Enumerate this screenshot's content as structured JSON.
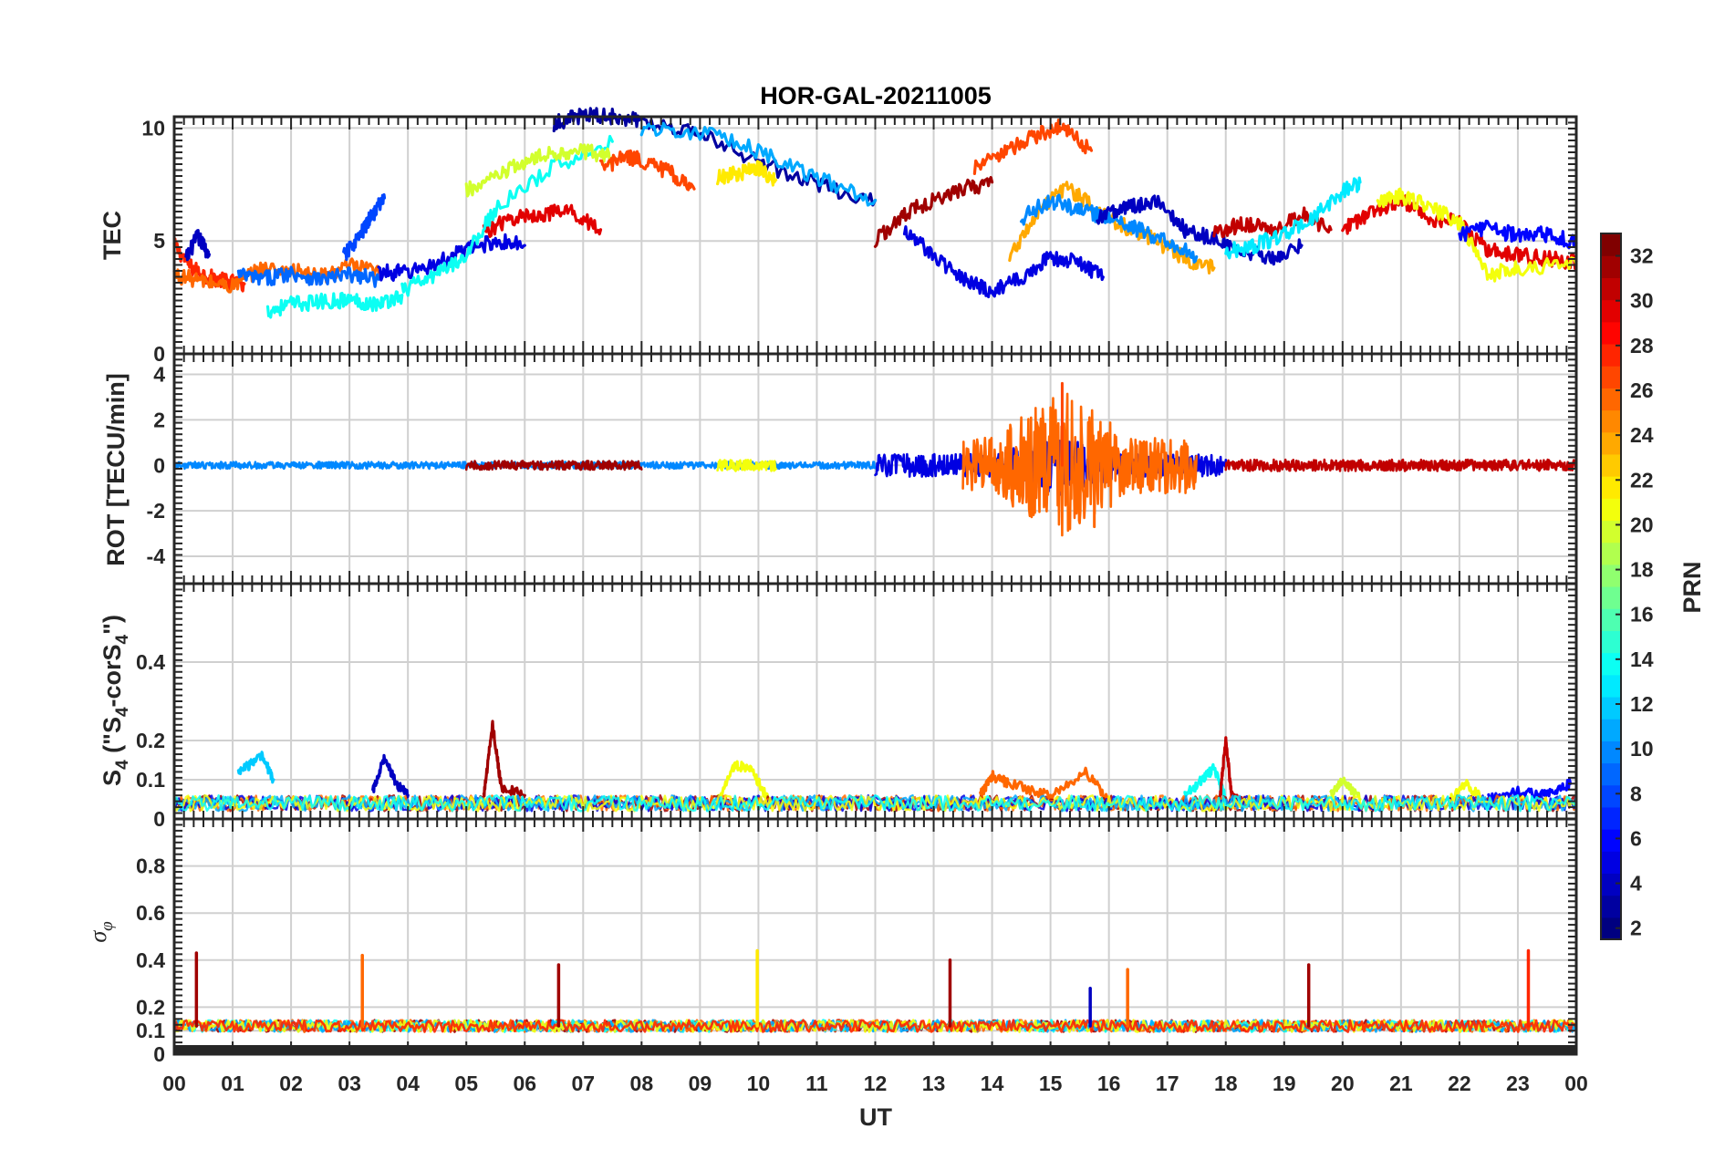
{
  "figure_title": "HOR-GAL-20211005",
  "x_axis_label": "UT",
  "colorbar_label": "PRN",
  "chart_data": [
    {
      "type": "line",
      "panel": "TEC",
      "title": "HOR-GAL-20211005",
      "ylabel": "TEC",
      "ylim": [
        0,
        10.5
      ],
      "yticks": [
        0,
        5,
        10
      ],
      "ytick_labels": [
        "0",
        "5",
        "10"
      ],
      "xlim": [
        0,
        24
      ],
      "grid": true,
      "series": [
        {
          "prn": 27,
          "x": [
            0.0,
            0.3,
            0.6,
            0.9,
            1.2
          ],
          "y": [
            4.8,
            3.8,
            3.4,
            3.2,
            3.1
          ]
        },
        {
          "prn": 3,
          "x": [
            0.2,
            0.4,
            0.6
          ],
          "y": [
            4.2,
            5.2,
            4.4
          ]
        },
        {
          "prn": 25,
          "x": [
            0.0,
            0.5,
            1.0,
            1.5,
            2.0,
            2.5,
            3.0,
            3.5
          ],
          "y": [
            3.5,
            3.2,
            3.0,
            3.8,
            3.7,
            3.4,
            3.9,
            3.6
          ]
        },
        {
          "prn": 8,
          "x": [
            1.1,
            1.5,
            2.0,
            2.5,
            3.0,
            3.5
          ],
          "y": [
            3.5,
            3.3,
            3.6,
            3.3,
            3.5,
            3.3
          ]
        },
        {
          "prn": 13,
          "x": [
            1.6,
            2.0,
            2.5,
            3.0,
            3.5,
            3.9
          ],
          "y": [
            1.9,
            2.2,
            2.3,
            2.4,
            2.2,
            2.6
          ]
        },
        {
          "prn": 7,
          "x": [
            2.9,
            3.2,
            3.4,
            3.6
          ],
          "y": [
            4.3,
            5.3,
            6.2,
            6.9
          ]
        },
        {
          "prn": 4,
          "x": [
            3.5,
            4.0,
            4.5,
            5.0,
            5.5,
            6.0
          ],
          "y": [
            3.6,
            3.6,
            4.0,
            4.6,
            5.0,
            4.8
          ]
        },
        {
          "prn": 29,
          "x": [
            5.3,
            5.8,
            6.3,
            6.8,
            7.3
          ],
          "y": [
            5.4,
            6.0,
            6.2,
            6.3,
            5.5
          ]
        },
        {
          "prn": 13,
          "x": [
            3.9,
            4.5,
            5.0,
            5.5,
            6.5,
            7.5
          ],
          "y": [
            2.8,
            3.5,
            4.4,
            6.4,
            8.3,
            9.4
          ]
        },
        {
          "prn": 19,
          "x": [
            5.0,
            5.5,
            6.0,
            6.5,
            7.0,
            7.5
          ],
          "y": [
            7.2,
            7.8,
            8.5,
            8.9,
            9.0,
            8.7
          ]
        },
        {
          "prn": 26,
          "x": [
            7.3,
            7.7,
            8.0,
            8.5,
            8.9
          ],
          "y": [
            8.2,
            8.7,
            8.6,
            8.0,
            7.3
          ]
        },
        {
          "prn": 2,
          "x": [
            6.5,
            7.0,
            7.5,
            8.0,
            9.0,
            10.0,
            11.0,
            12.0
          ],
          "y": [
            10.2,
            10.6,
            10.5,
            10.4,
            9.7,
            8.5,
            7.5,
            6.8
          ]
        },
        {
          "prn": 10,
          "x": [
            8.0,
            9.0,
            10.0,
            11.0,
            12.0
          ],
          "y": [
            10.0,
            9.8,
            9.0,
            7.8,
            6.8
          ]
        },
        {
          "prn": 21,
          "x": [
            9.3,
            9.7,
            10.0,
            10.3
          ],
          "y": [
            7.8,
            8.0,
            8.2,
            7.7
          ]
        },
        {
          "prn": 31,
          "x": [
            12.0,
            12.5,
            13.0,
            13.5,
            14.0
          ],
          "y": [
            5.0,
            6.2,
            6.8,
            7.3,
            7.6
          ]
        },
        {
          "prn": 26,
          "x": [
            13.7,
            14.2,
            14.7,
            15.2,
            15.7
          ],
          "y": [
            8.2,
            8.9,
            9.6,
            10.1,
            9.0
          ]
        },
        {
          "prn": 4,
          "x": [
            12.5,
            13.0,
            13.5,
            14.0,
            14.5,
            15.0,
            15.5,
            15.9
          ],
          "y": [
            5.5,
            4.3,
            3.3,
            2.8,
            3.3,
            4.3,
            4.0,
            3.4
          ]
        },
        {
          "prn": 23,
          "x": [
            14.3,
            14.8,
            15.3,
            15.8,
            16.3,
            16.8,
            17.3,
            17.8
          ],
          "y": [
            4.3,
            6.3,
            7.4,
            6.3,
            5.6,
            5.0,
            4.2,
            3.8
          ]
        },
        {
          "prn": 9,
          "x": [
            14.5,
            15.0,
            15.5,
            16.0,
            16.5,
            17.0,
            17.5
          ],
          "y": [
            6.0,
            6.8,
            6.4,
            6.0,
            5.5,
            5.0,
            4.3
          ]
        },
        {
          "prn": 3,
          "x": [
            15.8,
            16.3,
            16.8,
            17.3,
            17.8,
            18.3,
            18.8,
            19.3
          ],
          "y": [
            6.0,
            6.5,
            6.8,
            5.5,
            5.1,
            4.5,
            4.3,
            4.8
          ]
        },
        {
          "prn": 30,
          "x": [
            17.8,
            18.3,
            18.8,
            19.3,
            19.8
          ],
          "y": [
            5.3,
            5.8,
            5.5,
            6.2,
            5.5
          ]
        },
        {
          "prn": 12,
          "x": [
            18.0,
            18.5,
            19.0,
            19.5,
            20.0,
            20.3
          ],
          "y": [
            4.5,
            4.8,
            5.3,
            6.0,
            7.2,
            7.6
          ]
        },
        {
          "prn": 29,
          "x": [
            20.0,
            20.5,
            21.0,
            21.5,
            22.0,
            22.5,
            23.0,
            23.5,
            24.0
          ],
          "y": [
            5.5,
            6.2,
            6.8,
            6.0,
            5.8,
            4.6,
            4.4,
            4.2,
            4.1
          ]
        },
        {
          "prn": 20,
          "x": [
            20.6,
            21.0,
            21.5,
            22.0,
            22.5,
            23.0,
            24.0
          ],
          "y": [
            6.8,
            7.0,
            6.5,
            5.8,
            3.5,
            3.8,
            4.0
          ]
        },
        {
          "prn": 5,
          "x": [
            22.0,
            22.5,
            23.0,
            23.5,
            24.0
          ],
          "y": [
            5.3,
            5.6,
            5.2,
            5.3,
            4.9
          ]
        }
      ]
    },
    {
      "type": "line",
      "panel": "ROT",
      "ylabel": "ROT [TECU/min]",
      "ylim": [
        -5.2,
        4.9
      ],
      "yticks": [
        -4,
        -2,
        0,
        2,
        4
      ],
      "ytick_labels": [
        "-4",
        "-2",
        "0",
        "2",
        "4"
      ],
      "xlim": [
        0,
        24
      ],
      "grid": true,
      "description_values": {
        "baseline": 0.0,
        "peak_max": 3.6,
        "peak_min": -2.7,
        "peak_time_ut": 15.2
      },
      "series": [
        {
          "prn": 9,
          "x": [
            0.0,
            12.0
          ],
          "amplitude": 0.3
        },
        {
          "prn": 31,
          "x": [
            5.0,
            8.0
          ],
          "amplitude": 0.4
        },
        {
          "prn": 20,
          "x": [
            9.3,
            10.3
          ],
          "amplitude": 0.5
        },
        {
          "prn": 4,
          "x": [
            12.0,
            18.0
          ],
          "amplitude": 1.0
        },
        {
          "prn": 25,
          "x": [
            13.5,
            17.5
          ],
          "amplitude": 2.5
        },
        {
          "prn": 30,
          "x": [
            18.0,
            24.0
          ],
          "amplitude": 0.5
        }
      ]
    },
    {
      "type": "line",
      "panel": "S4",
      "ylabel_main": "S",
      "ylabel_sub1": "4",
      "ylabel_mid": " (\"S",
      "ylabel_sub2": "4",
      "ylabel_tail": "-corS",
      "ylabel_sub3": "4",
      "ylabel_end": "\")",
      "ylim": [
        0,
        0.6
      ],
      "yticks": [
        0,
        0.1,
        0.2,
        0.4
      ],
      "ytick_labels": [
        "0",
        "0.1",
        "0.2",
        "0.4"
      ],
      "xlim": [
        0,
        24
      ],
      "grid": true,
      "series": [
        {
          "prn": 11,
          "x": [
            1.1,
            1.3,
            1.5,
            1.7
          ],
          "y": [
            0.12,
            0.14,
            0.16,
            0.1
          ]
        },
        {
          "prn": 31,
          "x": [
            5.3,
            5.45,
            5.6,
            6.0
          ],
          "y": [
            0.06,
            0.24,
            0.08,
            0.06
          ]
        },
        {
          "prn": 3,
          "x": [
            3.4,
            3.6,
            3.8,
            4.0
          ],
          "y": [
            0.07,
            0.16,
            0.09,
            0.06
          ]
        },
        {
          "prn": 20,
          "x": [
            9.3,
            9.6,
            9.9,
            10.2
          ],
          "y": [
            0.05,
            0.14,
            0.12,
            0.04
          ]
        },
        {
          "prn": 25,
          "x": [
            13.8,
            14.0,
            14.3,
            15.0,
            15.6,
            16.0
          ],
          "y": [
            0.06,
            0.11,
            0.09,
            0.06,
            0.12,
            0.05
          ]
        },
        {
          "prn": 13,
          "x": [
            17.3,
            17.6,
            17.8,
            18.0
          ],
          "y": [
            0.06,
            0.1,
            0.13,
            0.05
          ]
        },
        {
          "prn": 30,
          "x": [
            17.9,
            18.0,
            18.1,
            18.3
          ],
          "y": [
            0.05,
            0.2,
            0.06,
            0.04
          ]
        },
        {
          "prn": 19,
          "x": [
            19.8,
            20.0,
            20.3
          ],
          "y": [
            0.06,
            0.1,
            0.05
          ]
        },
        {
          "prn": 20,
          "x": [
            21.8,
            22.1,
            22.4
          ],
          "y": [
            0.04,
            0.09,
            0.05
          ]
        },
        {
          "prn": 5,
          "x": [
            22.5,
            23.0,
            23.5,
            23.9
          ],
          "y": [
            0.05,
            0.07,
            0.06,
            0.09
          ]
        }
      ]
    },
    {
      "type": "line",
      "panel": "sigma_phi",
      "ylabel": "σ",
      "ylabel_sub": "φ",
      "ylim": [
        0,
        1
      ],
      "yticks": [
        0,
        0.1,
        0.2,
        0.4,
        0.6,
        0.8
      ],
      "ytick_labels": [
        "0",
        "0.1",
        "0.2",
        "0.4",
        "0.6",
        "0.8"
      ],
      "xlim": [
        0,
        24
      ],
      "xticks": [
        0,
        1,
        2,
        3,
        4,
        5,
        6,
        7,
        8,
        9,
        10,
        11,
        12,
        13,
        14,
        15,
        16,
        17,
        18,
        19,
        20,
        21,
        22,
        23,
        24
      ],
      "xtick_labels": [
        "00",
        "01",
        "02",
        "03",
        "04",
        "05",
        "06",
        "07",
        "08",
        "09",
        "10",
        "11",
        "12",
        "13",
        "14",
        "15",
        "16",
        "17",
        "18",
        "19",
        "20",
        "21",
        "22",
        "23",
        "00"
      ],
      "xlabel": "UT",
      "grid": true,
      "baseline": 0.12,
      "spikes": [
        {
          "prn": 31,
          "x": 0.38,
          "y": 0.43
        },
        {
          "prn": 25,
          "x": 3.22,
          "y": 0.42
        },
        {
          "prn": 31,
          "x": 6.58,
          "y": 0.38
        },
        {
          "prn": 21,
          "x": 9.98,
          "y": 0.44
        },
        {
          "prn": 31,
          "x": 13.28,
          "y": 0.4
        },
        {
          "prn": 3,
          "x": 15.68,
          "y": 0.28
        },
        {
          "prn": 25,
          "x": 16.32,
          "y": 0.36
        },
        {
          "prn": 31,
          "x": 19.42,
          "y": 0.38
        },
        {
          "prn": 27,
          "x": 23.18,
          "y": 0.44
        }
      ]
    }
  ],
  "colorbar": {
    "label": "PRN",
    "range": [
      1,
      32
    ],
    "ticks": [
      2,
      4,
      6,
      8,
      10,
      12,
      14,
      16,
      18,
      20,
      22,
      24,
      26,
      28,
      30,
      32
    ],
    "tick_labels": [
      "2",
      "4",
      "6",
      "8",
      "10",
      "12",
      "14",
      "16",
      "18",
      "20",
      "22",
      "24",
      "26",
      "28",
      "30",
      "32"
    ],
    "colormap": "jet"
  }
}
